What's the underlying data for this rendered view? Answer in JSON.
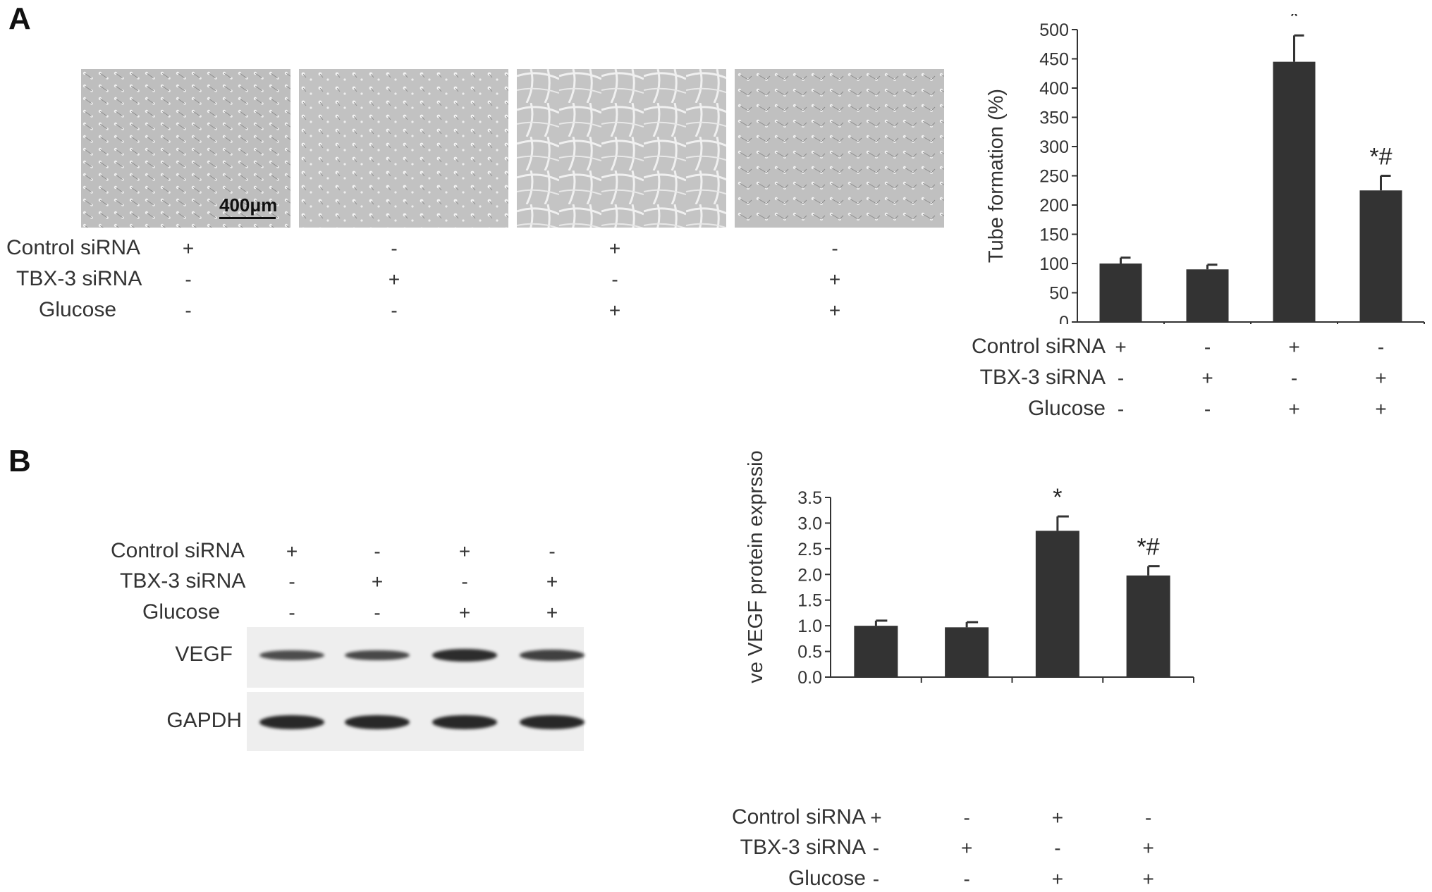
{
  "panels": {
    "a": {
      "label": "A",
      "scale_bar_label": "400μm",
      "conditions": [
        {
          "label": "Control siRNA",
          "values": [
            "+",
            "-",
            "+",
            "-"
          ]
        },
        {
          "label": "TBX-3 siRNA",
          "values": [
            "-",
            "+",
            "-",
            "+"
          ]
        },
        {
          "label": "Glucose",
          "values": [
            "-",
            "-",
            "+",
            "+"
          ]
        }
      ]
    },
    "b": {
      "label": "B",
      "conditions": [
        {
          "label": "Control siRNA",
          "values": [
            "+",
            "-",
            "+",
            "-"
          ]
        },
        {
          "label": "TBX-3 siRNA",
          "values": [
            "-",
            "+",
            "-",
            "+"
          ]
        },
        {
          "label": "Glucose",
          "values": [
            "-",
            "-",
            "+",
            "+"
          ]
        }
      ],
      "blot": {
        "rows": [
          {
            "label": "VEGF",
            "intensities": [
              0.55,
              0.6,
              0.95,
              0.7
            ]
          },
          {
            "label": "GAPDH",
            "intensities": [
              1.0,
              1.0,
              1.0,
              1.0
            ]
          }
        ]
      }
    }
  },
  "chart_data": [
    {
      "type": "bar",
      "ylabel": "Tube formation (%)",
      "ylim": [
        0,
        500
      ],
      "yticks": [
        0,
        50,
        100,
        150,
        200,
        250,
        300,
        350,
        400,
        450,
        500
      ],
      "values": [
        100,
        90,
        445,
        225
      ],
      "errors": [
        10,
        8,
        45,
        25
      ],
      "annotations": [
        "",
        "",
        "*",
        "*#"
      ],
      "conditions": [
        {
          "label": "Control siRNA",
          "values": [
            "+",
            "-",
            "+",
            "-"
          ]
        },
        {
          "label": "TBX-3 siRNA",
          "values": [
            "-",
            "+",
            "-",
            "+"
          ]
        },
        {
          "label": "Glucose",
          "values": [
            "-",
            "-",
            "+",
            "+"
          ]
        }
      ],
      "bar_color": "#333333",
      "grid": false
    },
    {
      "type": "bar",
      "ylabel": "Relative VEGF protein exprssion",
      "ylim": [
        0,
        3.5
      ],
      "yticks": [
        "0.0",
        "0.5",
        "1.0",
        "1.5",
        "2.0",
        "2.5",
        "3.0",
        "3.5"
      ],
      "values": [
        1.0,
        0.97,
        2.85,
        1.98
      ],
      "errors": [
        0.1,
        0.1,
        0.28,
        0.18
      ],
      "annotations": [
        "",
        "",
        "*",
        "*#"
      ],
      "conditions": [
        {
          "label": "Control siRNA",
          "values": [
            "+",
            "-",
            "+",
            "-"
          ]
        },
        {
          "label": "TBX-3 siRNA",
          "values": [
            "-",
            "+",
            "-",
            "+"
          ]
        },
        {
          "label": "Glucose",
          "values": [
            "-",
            "-",
            "+",
            "+"
          ]
        }
      ],
      "bar_color": "#333333",
      "grid": false
    }
  ]
}
